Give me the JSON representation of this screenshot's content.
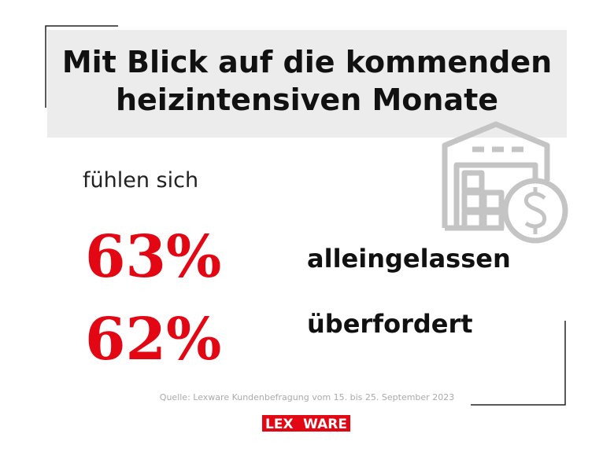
{
  "title": {
    "line1": "Mit Blick auf die kommenden",
    "line2": "heizintensiven Monate"
  },
  "intro": "fühlen sich",
  "stats": [
    {
      "value": "63%",
      "label": "alleingelassen"
    },
    {
      "value": "62%",
      "label": "überfordert"
    }
  ],
  "source": "Quelle: Lexware Kundenbefragung vom 15. bis 25. September 2023",
  "logo": {
    "left": "LEX",
    "right": "WARE"
  }
}
